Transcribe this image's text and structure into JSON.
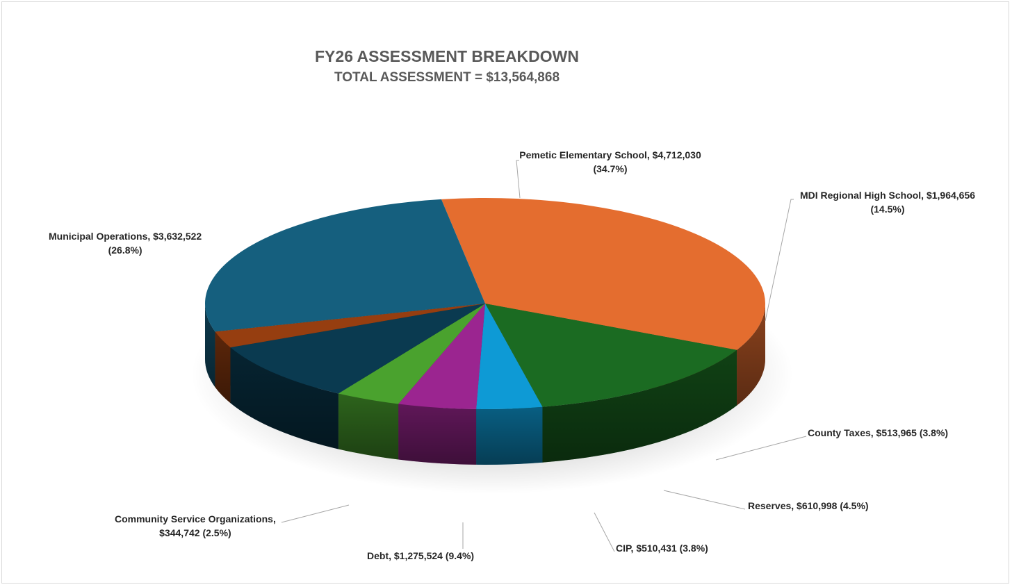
{
  "chart_data": {
    "type": "pie",
    "title": "FY26 ASSESSMENT BREAKDOWN",
    "subtitle": "TOTAL ASSESSMENT = $13,564,868",
    "slices": [
      {
        "label": "Pemetic Elementary School",
        "value": 4712030,
        "percent": 34.7,
        "color": "#e46d2f",
        "label_lines": [
          "Pemetic Elementary School,  $4,712,030",
          "(34.7%)"
        ]
      },
      {
        "label": "MDI Regional High School",
        "value": 1964656,
        "percent": 14.5,
        "color": "#1b6b22",
        "label_lines": [
          "MDI Regional High School,  $1,964,656",
          "(14.5%)"
        ]
      },
      {
        "label": "County Taxes",
        "value": 513965,
        "percent": 3.8,
        "color": "#0e9ad5",
        "label_lines": [
          "County Taxes,  $513,965 (3.8%)"
        ]
      },
      {
        "label": "Reserves",
        "value": 610998,
        "percent": 4.5,
        "color": "#9b2590",
        "label_lines": [
          "Reserves,  $610,998 (4.5%)"
        ]
      },
      {
        "label": "CIP",
        "value": 510431,
        "percent": 3.8,
        "color": "#4aa22e",
        "label_lines": [
          "CIP,  $510,431  (3.8%)"
        ]
      },
      {
        "label": "Debt",
        "value": 1275524,
        "percent": 9.4,
        "color": "#0a3a50",
        "label_lines": [
          "Debt,  $1,275,524 (9.4%)"
        ]
      },
      {
        "label": "Community Service Organizations",
        "value": 344742,
        "percent": 2.5,
        "color": "#963e10",
        "label_lines": [
          "Community Service Organizations,",
          "$344,742  (2.5%)"
        ]
      },
      {
        "label": "Municipal Operations",
        "value": 3632522,
        "percent": 26.8,
        "color": "#155f7e",
        "label_lines": [
          "Municipal Operations,  $3,632,522",
          "(26.8%)"
        ]
      }
    ],
    "legend": "none"
  }
}
